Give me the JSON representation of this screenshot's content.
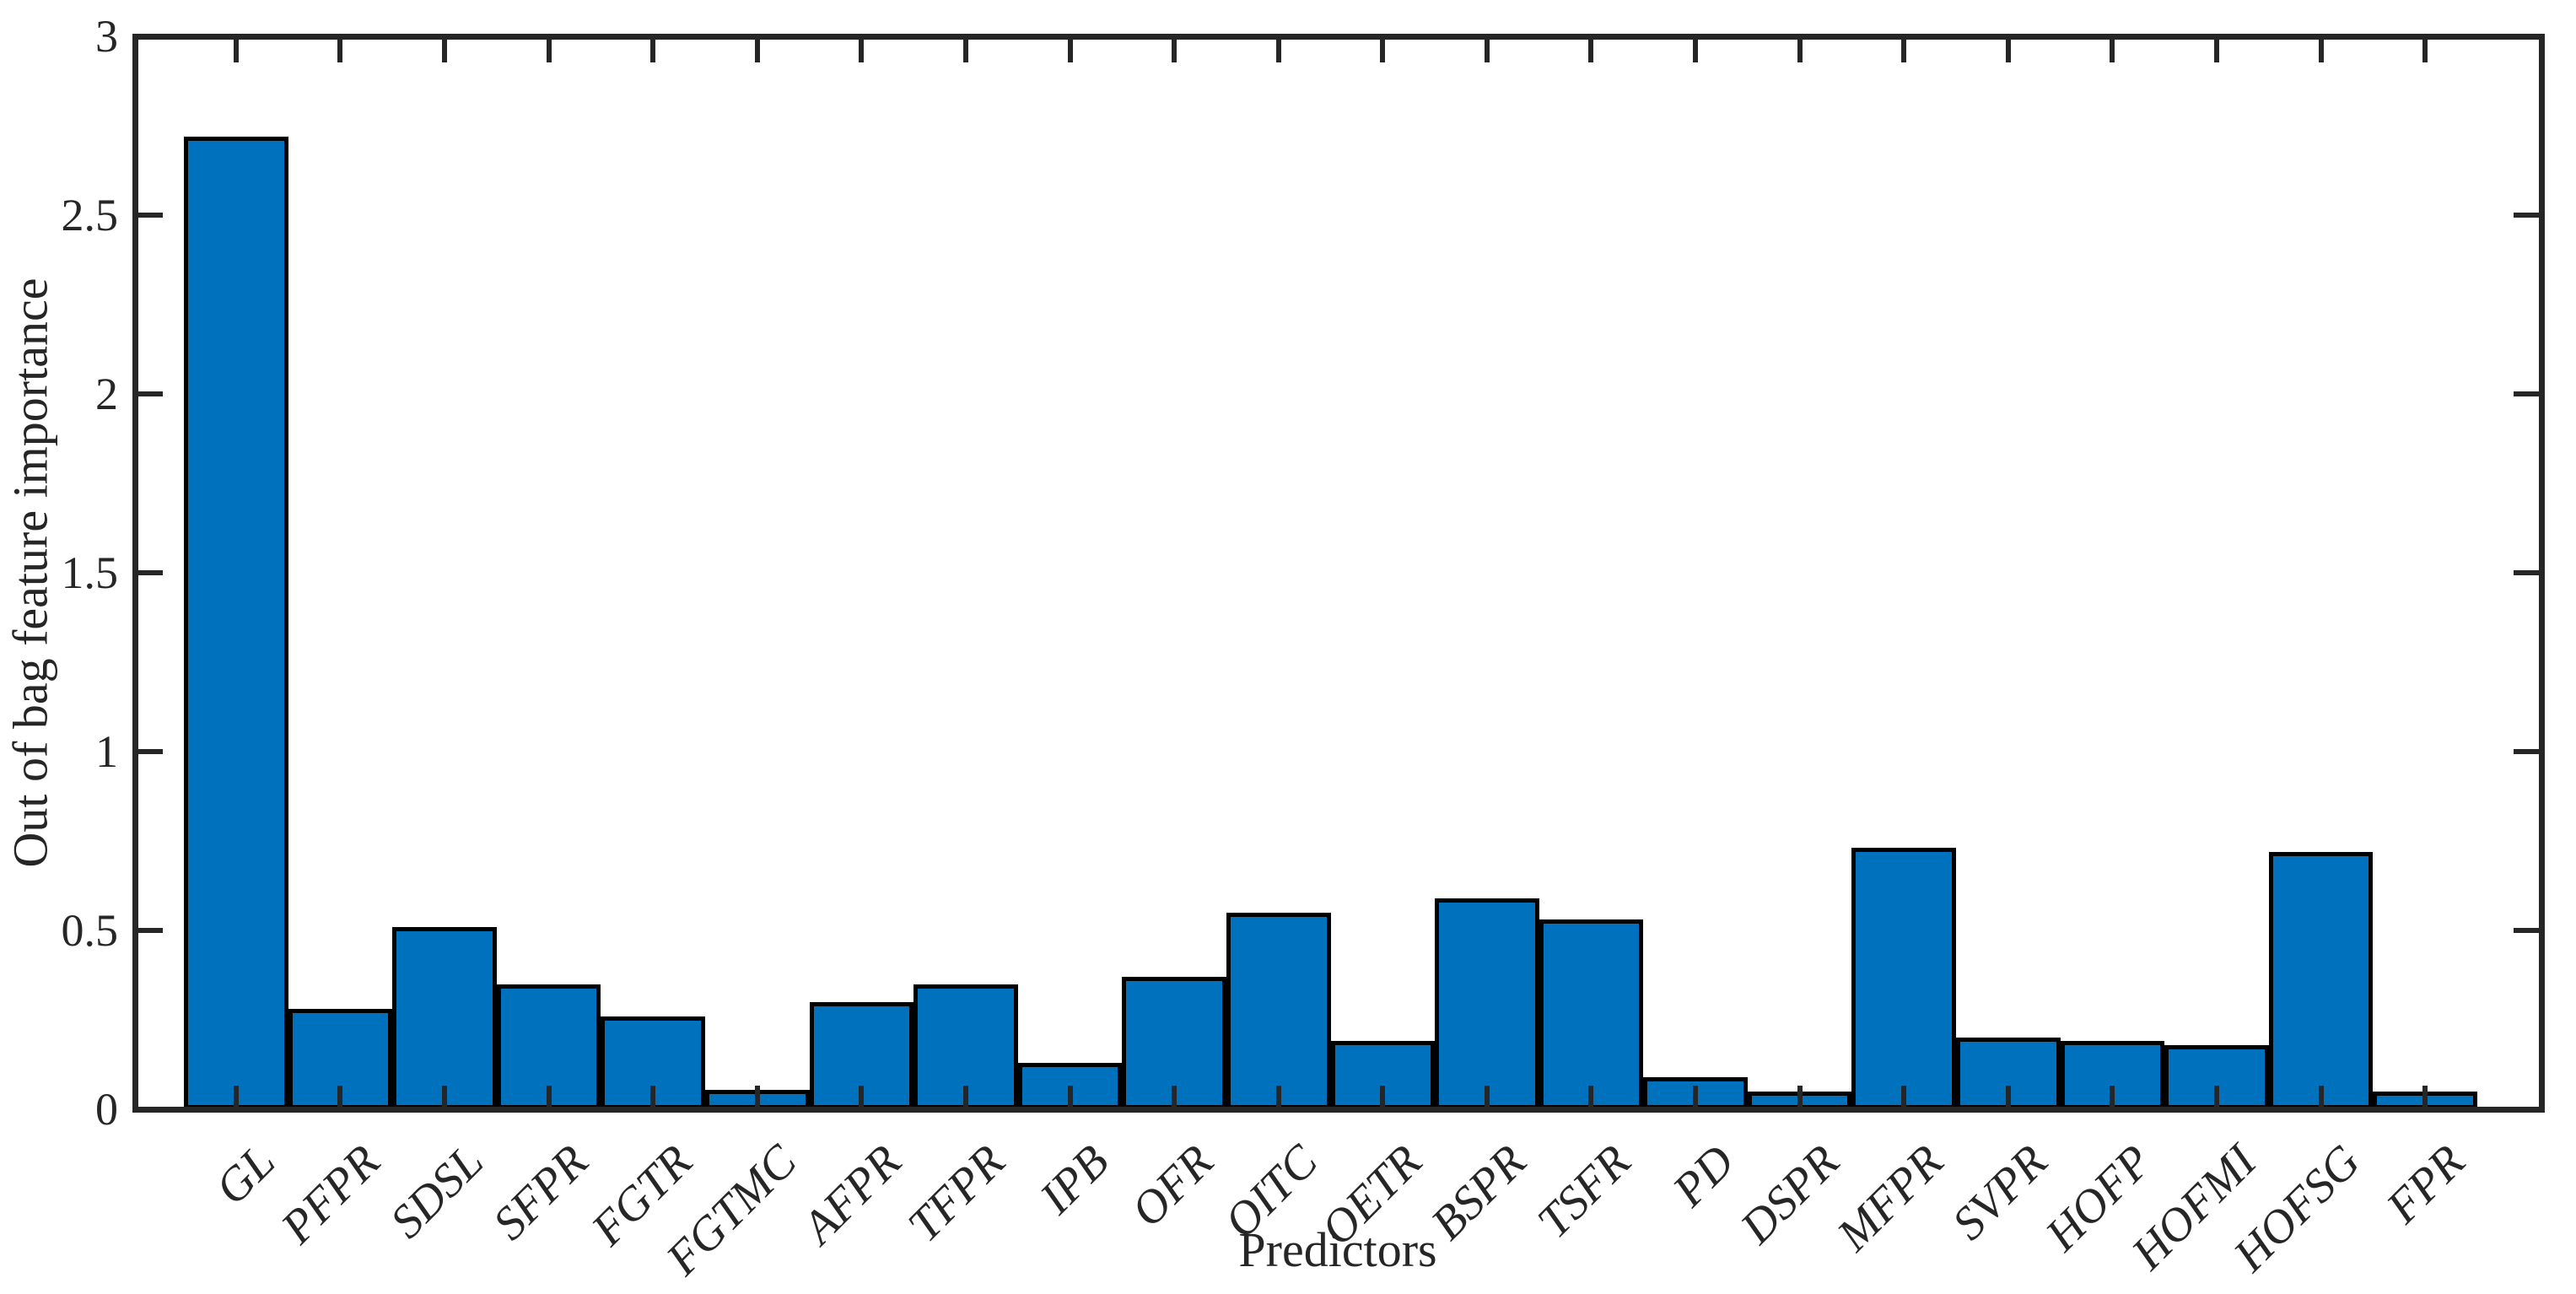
{
  "chart_data": {
    "type": "bar",
    "title": "",
    "xlabel": "Predictors",
    "ylabel": "Out of bag feature importance",
    "categories": [
      "GL",
      "PFPR",
      "SDSL",
      "SFPR",
      "FGTR",
      "FGTMC",
      "AFPR",
      "TFPR",
      "IPB",
      "OFR",
      "OITC",
      "OETR",
      "BSPR",
      "TSFR",
      "PD",
      "DSPR",
      "MFPR",
      "SVPR",
      "HOFP",
      "HOFMI",
      "HOFSG",
      "FPR"
    ],
    "values": [
      2.72,
      0.28,
      0.51,
      0.35,
      0.26,
      0.055,
      0.3,
      0.35,
      0.13,
      0.37,
      0.55,
      0.19,
      0.59,
      0.53,
      0.09,
      0.05,
      0.73,
      0.2,
      0.19,
      0.18,
      0.72,
      0.05
    ],
    "ylim": [
      0,
      3
    ],
    "yticks": [
      0,
      0.5,
      1,
      1.5,
      2,
      2.5,
      3
    ],
    "ytick_labels": [
      "0",
      "0.5",
      "1",
      "1.5",
      "2",
      "2.5",
      "3"
    ],
    "x_tick_rotation_deg": 45,
    "grid": false,
    "legend": "none",
    "bar_color": "#0072BD",
    "bar_edge_color": "#000000",
    "axis_color": "#262626",
    "background_color": "#ffffff"
  }
}
